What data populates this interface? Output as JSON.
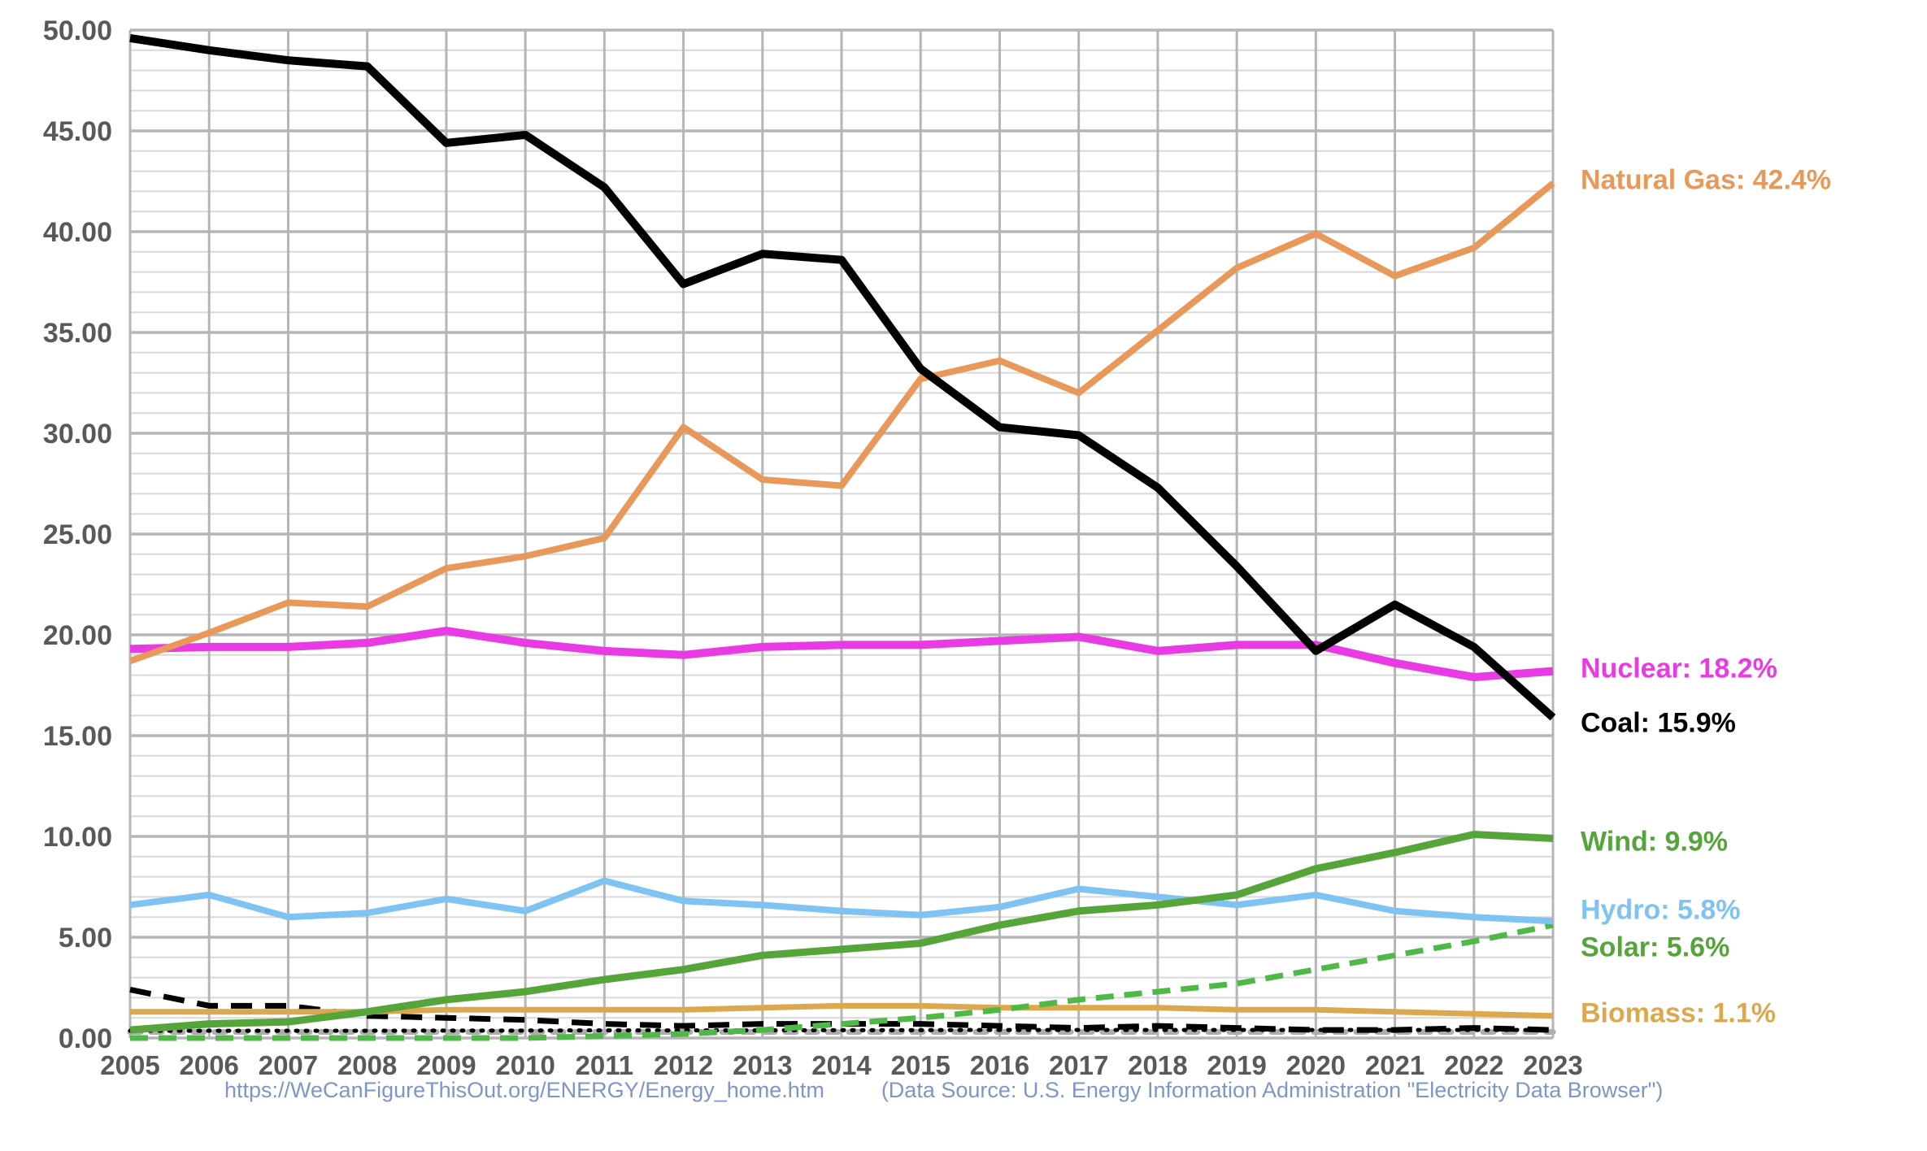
{
  "chart_data": {
    "type": "line",
    "title": "",
    "x": [
      2005,
      2006,
      2007,
      2008,
      2009,
      2010,
      2011,
      2012,
      2013,
      2014,
      2015,
      2016,
      2017,
      2018,
      2019,
      2020,
      2021,
      2022,
      2023
    ],
    "x_tick_labels": [
      "2005",
      "2006",
      "2007",
      "2008",
      "2009",
      "2010",
      "2011",
      "2012",
      "2013",
      "2014",
      "2015",
      "2016",
      "2017",
      "2018",
      "2019",
      "2020",
      "2021",
      "2022",
      "2023"
    ],
    "y_tick_labels": [
      "0.00",
      "5.00",
      "10.00",
      "15.00",
      "20.00",
      "25.00",
      "30.00",
      "35.00",
      "40.00",
      "45.00",
      "50.00"
    ],
    "ylim": [
      0,
      50
    ],
    "grid": {
      "minor_step": 1,
      "major_step": 5,
      "minor_color": "#D9D9D9",
      "major_color": "#B5B5B5"
    },
    "legend_position": "right-annotations",
    "series": [
      {
        "id": "other",
        "name": "(unlabeled gray dashed line)",
        "color": "#ADADAD",
        "line_style": "dashed",
        "values": [
          0.3,
          0.3,
          0.3,
          0.3,
          0.3,
          0.3,
          0.3,
          0.3,
          0.3,
          0.3,
          0.3,
          0.3,
          0.3,
          0.3,
          0.3,
          0.3,
          0.3,
          0.3,
          0.3
        ]
      },
      {
        "id": "geothermal",
        "name": "(unlabeled black dotted line)",
        "color": "#000000",
        "line_style": "dotted",
        "values": [
          0.36,
          0.36,
          0.36,
          0.36,
          0.37,
          0.37,
          0.38,
          0.38,
          0.38,
          0.39,
          0.39,
          0.4,
          0.4,
          0.4,
          0.4,
          0.4,
          0.4,
          0.4,
          0.4
        ]
      },
      {
        "id": "petroleum",
        "name": "(unlabeled black dashed line)",
        "color": "#000000",
        "line_style": "dashed",
        "values": [
          2.4,
          1.6,
          1.6,
          1.1,
          1.0,
          0.9,
          0.7,
          0.6,
          0.7,
          0.7,
          0.7,
          0.6,
          0.5,
          0.6,
          0.5,
          0.4,
          0.4,
          0.5,
          0.4
        ]
      },
      {
        "id": "biomass",
        "name": "Biomass",
        "color": "#DCA84F",
        "line_style": "solid",
        "values": [
          1.3,
          1.3,
          1.3,
          1.3,
          1.4,
          1.4,
          1.4,
          1.4,
          1.5,
          1.6,
          1.6,
          1.5,
          1.5,
          1.5,
          1.4,
          1.4,
          1.3,
          1.2,
          1.1
        ]
      },
      {
        "id": "solar",
        "name": "Solar",
        "color": "#4FB846",
        "line_style": "dashed",
        "values": [
          0.0,
          0.0,
          0.0,
          0.0,
          0.0,
          0.0,
          0.1,
          0.2,
          0.4,
          0.7,
          1.0,
          1.4,
          1.9,
          2.3,
          2.7,
          3.4,
          4.1,
          4.8,
          5.6
        ]
      },
      {
        "id": "hydro",
        "name": "Hydro",
        "color": "#7EC3F1",
        "line_style": "solid",
        "values": [
          6.6,
          7.1,
          6.0,
          6.2,
          6.9,
          6.3,
          7.8,
          6.8,
          6.6,
          6.3,
          6.1,
          6.5,
          7.4,
          7.0,
          6.6,
          7.1,
          6.3,
          6.0,
          5.8
        ]
      },
      {
        "id": "wind",
        "name": "Wind",
        "color": "#56A53B",
        "line_style": "solid",
        "values": [
          0.4,
          0.7,
          0.8,
          1.3,
          1.9,
          2.3,
          2.9,
          3.4,
          4.1,
          4.4,
          4.7,
          5.6,
          6.3,
          6.6,
          7.1,
          8.4,
          9.2,
          10.1,
          9.9
        ]
      },
      {
        "id": "nuclear",
        "name": "Nuclear",
        "color": "#E93BE3",
        "line_style": "solid",
        "values": [
          19.3,
          19.4,
          19.4,
          19.6,
          20.2,
          19.6,
          19.2,
          19.0,
          19.4,
          19.5,
          19.5,
          19.7,
          19.9,
          19.2,
          19.5,
          19.5,
          18.6,
          17.9,
          18.2
        ]
      },
      {
        "id": "natural_gas",
        "name": "Natural Gas",
        "color": "#E8995A",
        "line_style": "solid",
        "values": [
          18.7,
          20.1,
          21.6,
          21.4,
          23.3,
          23.9,
          24.8,
          30.3,
          27.7,
          27.4,
          32.7,
          33.6,
          32.0,
          35.1,
          38.2,
          39.9,
          37.8,
          39.2,
          42.4
        ]
      },
      {
        "id": "coal",
        "name": "Coal",
        "color": "#000000",
        "line_style": "solid",
        "values": [
          49.6,
          49.0,
          48.5,
          48.2,
          44.4,
          44.8,
          42.2,
          37.4,
          38.9,
          38.6,
          33.2,
          30.3,
          29.9,
          27.3,
          23.4,
          19.2,
          21.5,
          19.4,
          15.9
        ]
      }
    ],
    "annotations": [
      {
        "series": "natural_gas",
        "text": "Natural Gas: 42.4%",
        "color": "#E8995A"
      },
      {
        "series": "nuclear",
        "text": "Nuclear: 18.2%",
        "color": "#E93BE3"
      },
      {
        "series": "coal",
        "text": "Coal: 15.9%",
        "color": "#000000"
      },
      {
        "series": "wind",
        "text": "Wind: 9.9%",
        "color": "#56A53B"
      },
      {
        "series": "hydro",
        "text": "Hydro: 5.8%",
        "color": "#7EC3F1"
      },
      {
        "series": "solar",
        "text": "Solar: 5.6%",
        "color": "#56A53B"
      },
      {
        "series": "biomass",
        "text": "Biomass: 1.1%",
        "color": "#DCA84F"
      }
    ]
  },
  "footer": {
    "url": "https://WeCanFigureThisOut.org/ENERGY/Energy_home.htm",
    "source": "(Data Source: U.S. Energy Information Administration \"Electricity Data Browser\")"
  },
  "colors": {
    "axis_text": "#595959",
    "footer_text": "#7E96C6",
    "background": "#FFFFFF"
  }
}
